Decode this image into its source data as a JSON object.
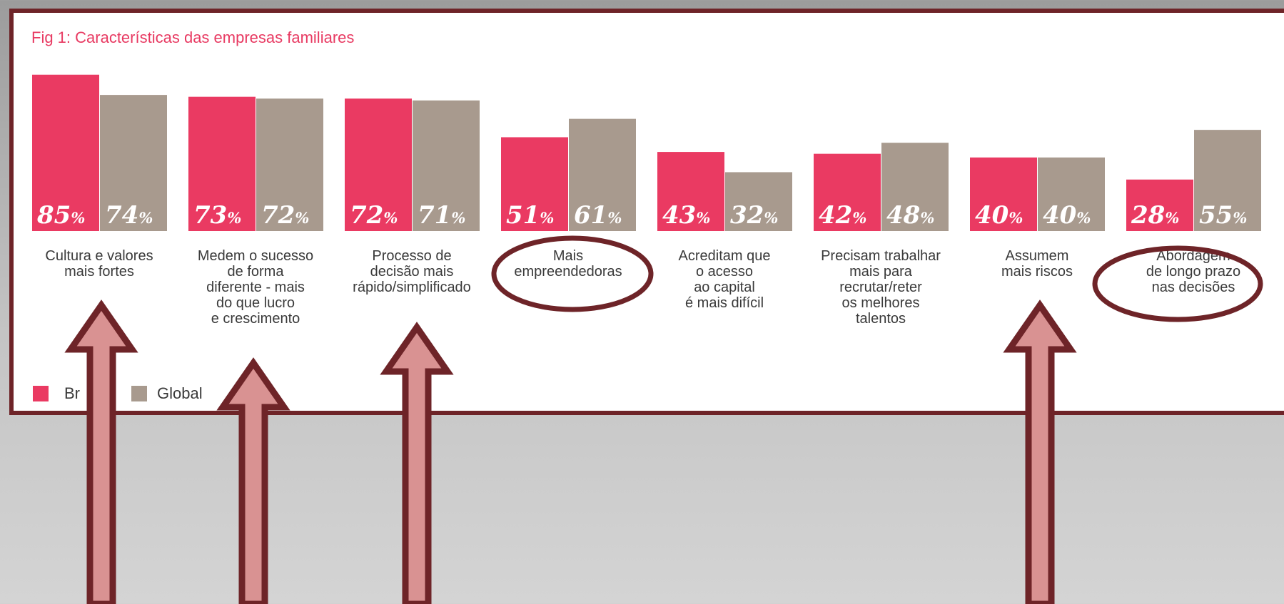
{
  "chart_data": {
    "type": "bar",
    "title": "Fig 1: Características das empresas familiares",
    "categories": [
      [
        "Cultura e valores",
        "mais fortes"
      ],
      [
        "Medem o sucesso",
        "de forma",
        "diferente - mais",
        "do que lucro",
        "e crescimento"
      ],
      [
        "Processo de",
        "decisão mais",
        "rápido/simplificado"
      ],
      [
        "Mais",
        "empreendedoras"
      ],
      [
        "Acreditam que",
        "o acesso",
        "ao capital",
        "é mais difícil"
      ],
      [
        "Precisam trabalhar",
        "mais para",
        "recrutar/reter",
        "os melhores",
        "talentos"
      ],
      [
        "Assumem",
        "mais riscos"
      ],
      [
        "Abordagem",
        "de longo prazo",
        "nas decisões"
      ]
    ],
    "series": [
      {
        "name": "Brasil",
        "color": "#ea3a62",
        "values": [
          85,
          73,
          72,
          51,
          43,
          42,
          40,
          28
        ]
      },
      {
        "name": "Global",
        "color": "#a89a8e",
        "values": [
          74,
          72,
          71,
          61,
          32,
          48,
          40,
          55
        ]
      }
    ],
    "value_suffix": "%",
    "ylim": [
      0,
      100
    ],
    "legend_position": "bottom-left",
    "grid": false,
    "legend_visible_text": {
      "brasil": "Br",
      "global": "Global"
    },
    "annotations": {
      "arrows_under_categories": [
        0,
        1,
        2,
        6
      ],
      "circled_categories": [
        3,
        7
      ],
      "arrow_color": "#d99292",
      "arrow_outline_color": "#6e2428",
      "circle_color": "#6e2428"
    }
  }
}
